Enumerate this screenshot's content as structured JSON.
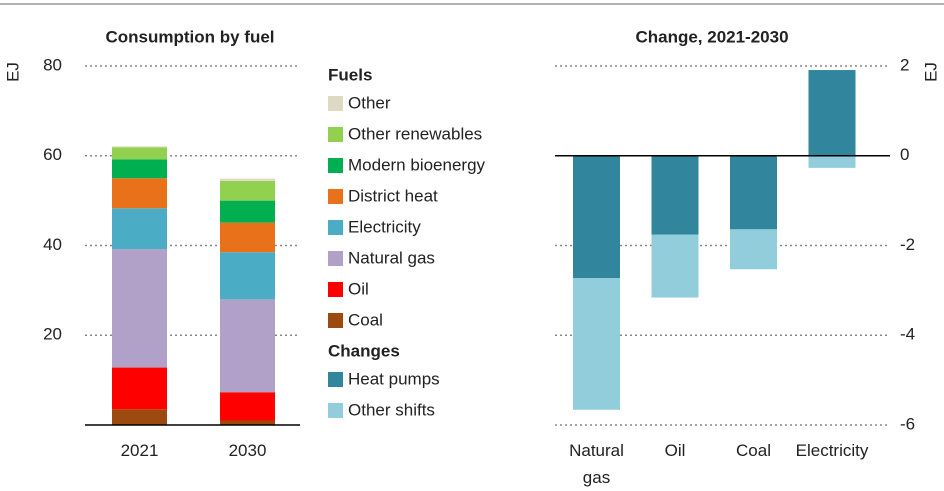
{
  "chart_data": [
    {
      "type": "stacked-bar",
      "title": "Consumption by fuel",
      "y_label": "EJ",
      "legend_title": "Fuels",
      "categories": [
        "2021",
        "2030"
      ],
      "series": [
        {
          "name": "Coal",
          "color": "#9c4a10",
          "values": [
            3.5,
            1
          ]
        },
        {
          "name": "Oil",
          "color": "#ff0000",
          "values": [
            9.3,
            6.3
          ]
        },
        {
          "name": "Natural gas",
          "color": "#b1a0c7",
          "values": [
            26.4,
            20.7
          ]
        },
        {
          "name": "Electricity",
          "color": "#4bacc6",
          "values": [
            9.1,
            10.5
          ]
        },
        {
          "name": "District heat",
          "color": "#e8711a",
          "values": [
            6.7,
            6.6
          ]
        },
        {
          "name": "Modern bioenergy",
          "color": "#00b050",
          "values": [
            4.2,
            4.9
          ]
        },
        {
          "name": "Other renewables",
          "color": "#92d050",
          "values": [
            2.7,
            4.4
          ]
        },
        {
          "name": "Other",
          "color": "#ddd9c3",
          "values": [
            0.2,
            0.5
          ]
        }
      ],
      "ylim": [
        0,
        80
      ],
      "yticks": [
        20,
        40,
        60,
        80
      ],
      "grid": true
    },
    {
      "type": "stacked-bar",
      "title": "Change, 2021-2030",
      "y_label": "EJ",
      "legend_title": "Changes",
      "categories": [
        "Natural gas",
        "Oil",
        "Coal",
        "Electricity"
      ],
      "series": [
        {
          "name": "Heat pumps",
          "color": "#31859c",
          "values": [
            -2.73,
            -1.76,
            -1.64,
            1.91
          ]
        },
        {
          "name": "Other shifts",
          "color": "#92cddc",
          "values": [
            -2.93,
            -1.4,
            -0.89,
            -0.27
          ]
        }
      ],
      "ylim": [
        -6,
        2
      ],
      "yticks": [
        -6,
        -4,
        -2,
        0,
        2
      ],
      "grid": true
    }
  ]
}
